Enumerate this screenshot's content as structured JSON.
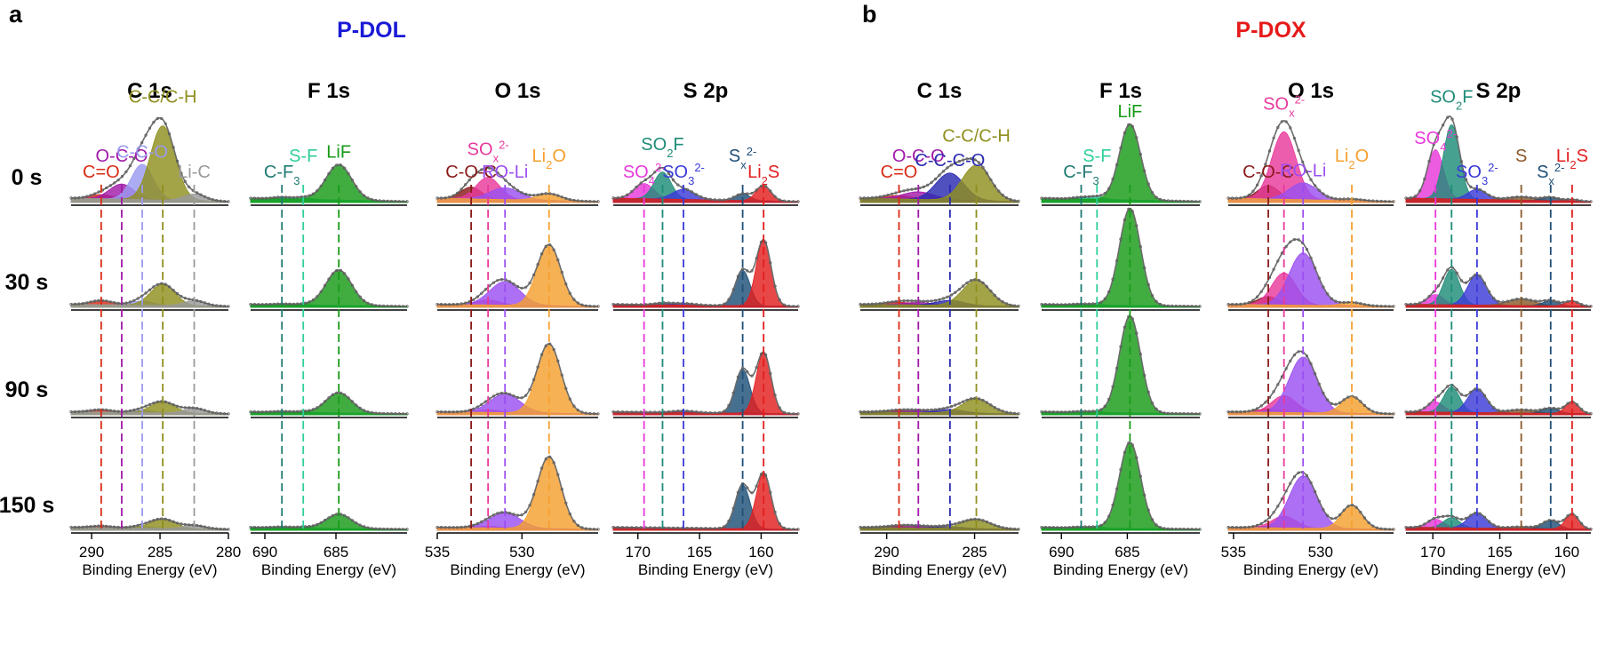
{
  "chart_data": {
    "type": "area",
    "time_labels": [
      "0 s",
      "30 s",
      "90 s",
      "150 s"
    ],
    "xlabel": "Binding Energy (eV)",
    "groups": [
      {
        "letter": "a",
        "title": "P-DOL",
        "title_color": "#1a1ad6",
        "panels": [
          {
            "region": "C 1s",
            "xlim": [
              291.5,
              280
            ],
            "ticks": [
              290,
              285,
              280
            ],
            "components": [
              {
                "label": "C=O",
                "color": "#d92b16",
                "center": 289.3,
                "width": 0.8,
                "heights": [
                  0.05,
                  0.05,
                  0.03,
                  0.02
                ],
                "label_html": "C=O"
              },
              {
                "label": "O-C-O",
                "color": "#a11aa8",
                "center": 287.8,
                "width": 0.9,
                "heights": [
                  0.18,
                  0.0,
                  0.0,
                  0.0
                ],
                "label_html": "O-C-O"
              },
              {
                "label": "C-C-O",
                "color": "#9a9af0",
                "center": 286.3,
                "width": 0.8,
                "heights": [
                  0.42,
                  0.05,
                  0.03,
                  0.02
                ],
                "label_html": "C-C-O"
              },
              {
                "label": "C-C/C-H",
                "color": "#8f8f1e",
                "center": 284.8,
                "width": 0.9,
                "heights": [
                  0.88,
                  0.25,
                  0.13,
                  0.11
                ],
                "label_html": "C-C/C-H"
              },
              {
                "label": "Li-C",
                "color": "#9a9a9a",
                "center": 282.5,
                "width": 0.8,
                "heights": [
                  0.08,
                  0.06,
                  0.06,
                  0.04
                ],
                "label_html": "Li-C"
              }
            ]
          },
          {
            "region": "F 1s",
            "xlim": [
              691,
              680
            ],
            "ticks": [
              690,
              685
            ],
            "components": [
              {
                "label": "C-F3",
                "color": "#1f7a72",
                "center": 688.8,
                "width": 0.6,
                "heights": [
                  0.02,
                  0.01,
                  0.01,
                  0.01
                ],
                "label_html": "C-F<tspan baseline-shift='sub' font-size='13'>3</tspan>"
              },
              {
                "label": "S-F",
                "color": "#2fcf9b",
                "center": 687.3,
                "width": 0.6,
                "heights": [
                  0.02,
                  0.01,
                  0.01,
                  0.01
                ],
                "label_html": "S-F"
              },
              {
                "label": "LiF",
                "color": "#179b17",
                "center": 684.8,
                "width": 0.9,
                "heights": [
                  0.42,
                  0.42,
                  0.24,
                  0.17
                ],
                "label_html": "LiF"
              }
            ]
          },
          {
            "region": "O 1s",
            "xlim": [
              535,
              525.5
            ],
            "ticks": [
              535,
              530
            ],
            "components": [
              {
                "label": "C-O-C",
                "color": "#8a1a1a",
                "center": 533.0,
                "width": 0.6,
                "heights": [
                  0.14,
                  0.0,
                  0.0,
                  0.0
                ],
                "label_html": "C-O-C"
              },
              {
                "label": "SOx2-",
                "color": "#e8399b",
                "center": 532.0,
                "width": 0.7,
                "heights": [
                  0.26,
                  0.06,
                  0.03,
                  0.02
                ],
                "label_html": "SO<tspan baseline-shift='sub' font-size='13'>x</tspan><tspan baseline-shift='super' font-size='13'>2-</tspan>"
              },
              {
                "label": "RO-Li",
                "color": "#9b4ff0",
                "center": 531.0,
                "width": 0.9,
                "heights": [
                  0.14,
                  0.28,
                  0.22,
                  0.18
                ],
                "label_html": "RO-Li"
              },
              {
                "label": "Li2O",
                "color": "#f5a030",
                "center": 528.4,
                "width": 0.7,
                "heights": [
                  0.08,
                  0.72,
                  0.82,
                  0.85
                ],
                "label_html": "Li<tspan baseline-shift='sub' font-size='13'>2</tspan>O"
              }
            ]
          },
          {
            "region": "S 2p",
            "xlim": [
              172,
              157
            ],
            "ticks": [
              170,
              165,
              160
            ],
            "components": [
              {
                "label": "SO42-",
                "color": "#e838d9",
                "center": 169.5,
                "width": 0.8,
                "heights": [
                  0.18,
                  0.0,
                  0.0,
                  0.0
                ],
                "label_html": "SO<tspan baseline-shift='sub' font-size='13'>4</tspan><tspan baseline-shift='super' font-size='13'>2-</tspan>"
              },
              {
                "label": "SO2F",
                "color": "#1e8c78",
                "center": 168.0,
                "width": 0.7,
                "heights": [
                  0.32,
                  0.02,
                  0.0,
                  0.0
                ],
                "label_html": "SO<tspan baseline-shift='sub' font-size='13'>2</tspan>F"
              },
              {
                "label": "SO32-",
                "color": "#3a3ad8",
                "center": 166.3,
                "width": 0.9,
                "heights": [
                  0.12,
                  0.02,
                  0.02,
                  0.0
                ],
                "label_html": "SO<tspan baseline-shift='sub' font-size='13'>3</tspan><tspan baseline-shift='super' font-size='13'>2-</tspan>"
              },
              {
                "label": "Sx2-",
                "color": "#1f4f78",
                "center": 161.5,
                "width": 0.6,
                "heights": [
                  0.08,
                  0.42,
                  0.52,
                  0.52
                ],
                "label_html": "S<tspan baseline-shift='sub' font-size='13'>x</tspan><tspan baseline-shift='super' font-size='13'>2-</tspan>"
              },
              {
                "label": "Li2S",
                "color": "#e31e1e",
                "center": 159.8,
                "width": 0.6,
                "heights": [
                  0.18,
                  0.78,
                  0.72,
                  0.66
                ],
                "label_html": "Li<tspan baseline-shift='sub' font-size='13'>2</tspan>S"
              }
            ]
          }
        ]
      },
      {
        "letter": "b",
        "title": "P-DOX",
        "title_color": "#e61a1a",
        "panels": [
          {
            "region": "C 1s",
            "xlim": [
              291.5,
              282.5
            ],
            "ticks": [
              290,
              285
            ],
            "components": [
              {
                "label": "C=O",
                "color": "#d92b16",
                "center": 289.3,
                "width": 0.8,
                "heights": [
                  0.04,
                  0.03,
                  0.02,
                  0.02
                ],
                "label_html": "C=O"
              },
              {
                "label": "O-C-O",
                "color": "#a11aa8",
                "center": 288.2,
                "width": 0.9,
                "heights": [
                  0.09,
                  0.03,
                  0.02,
                  0.02
                ],
                "label_html": "O-C-O"
              },
              {
                "label": "C-C-C-O",
                "color": "#2a2ab0",
                "center": 286.4,
                "width": 0.8,
                "heights": [
                  0.32,
                  0.06,
                  0.04,
                  0.02
                ],
                "label_html": "C-C-C-O"
              },
              {
                "label": "C-C/C-H",
                "color": "#8f8f1e",
                "center": 284.9,
                "width": 0.8,
                "heights": [
                  0.42,
                  0.3,
                  0.17,
                  0.11
                ],
                "label_html": "C-C/C-H"
              }
            ]
          },
          {
            "region": "F 1s",
            "xlim": [
              691.5,
              679.5
            ],
            "ticks": [
              690,
              685
            ],
            "components": [
              {
                "label": "C-F3",
                "color": "#1f7a72",
                "center": 688.5,
                "width": 0.6,
                "heights": [
                  0.02,
                  0.01,
                  0.01,
                  0.01
                ],
                "label_html": "C-F<tspan baseline-shift='sub' font-size='13'>3</tspan>"
              },
              {
                "label": "S-F",
                "color": "#2fcf9b",
                "center": 687.3,
                "width": 0.6,
                "heights": [
                  0.03,
                  0.01,
                  0.01,
                  0.01
                ],
                "label_html": "S-F"
              },
              {
                "label": "LiF",
                "color": "#179b17",
                "center": 684.8,
                "width": 0.8,
                "heights": [
                  0.9,
                  1.15,
                  1.15,
                  1.02
                ],
                "label_html": "LiF"
              }
            ]
          },
          {
            "region": "O 1s",
            "xlim": [
              535.3,
              525.8
            ],
            "ticks": [
              535,
              530
            ],
            "components": [
              {
                "label": "C-O-C",
                "color": "#8a1a1a",
                "center": 533.0,
                "width": 0.6,
                "heights": [
                  0.16,
                  0.1,
                  0.04,
                  0.02
                ],
                "label_html": "C-O-C"
              },
              {
                "label": "SOx2-",
                "color": "#e8399b",
                "center": 532.1,
                "width": 0.7,
                "heights": [
                  0.8,
                  0.38,
                  0.2,
                  0.14
                ],
                "label_html": "SO<tspan baseline-shift='sub' font-size='13'>x</tspan><tspan baseline-shift='super' font-size='13'>2-</tspan>"
              },
              {
                "label": "RO-Li",
                "color": "#9b4ff0",
                "center": 531.0,
                "width": 0.8,
                "heights": [
                  0.2,
                  0.62,
                  0.66,
                  0.62
                ],
                "label_html": "RO-Li"
              },
              {
                "label": "Li2O",
                "color": "#f5a030",
                "center": 528.2,
                "width": 0.6,
                "heights": [
                  0.02,
                  0.04,
                  0.2,
                  0.28
                ],
                "label_html": "Li<tspan baseline-shift='sub' font-size='13'>2</tspan>O"
              }
            ]
          },
          {
            "region": "S 2p",
            "xlim": [
              172,
              158.2
            ],
            "ticks": [
              170,
              165,
              160
            ],
            "components": [
              {
                "label": "SO42-",
                "color": "#e838d9",
                "center": 169.8,
                "width": 0.6,
                "heights": [
                  0.58,
                  0.12,
                  0.12,
                  0.1
                ],
                "label_html": "SO<tspan baseline-shift='sub' font-size='13'>4</tspan><tspan baseline-shift='super' font-size='13'>2-</tspan>"
              },
              {
                "label": "SO2F",
                "color": "#1e8c78",
                "center": 168.6,
                "width": 0.6,
                "heights": [
                  0.88,
                  0.42,
                  0.3,
                  0.12
                ],
                "label_html": "SO<tspan baseline-shift='sub' font-size='13'>2</tspan>F"
              },
              {
                "label": "SO32-",
                "color": "#3a3ad8",
                "center": 166.7,
                "width": 0.7,
                "heights": [
                  0.12,
                  0.36,
                  0.28,
                  0.18
                ],
                "label_html": "SO<tspan baseline-shift='sub' font-size='13'>3</tspan><tspan baseline-shift='super' font-size='13'>2-</tspan>"
              },
              {
                "label": "S",
                "color": "#8a5a2a",
                "center": 163.4,
                "width": 1.0,
                "heights": [
                  0.04,
                  0.08,
                  0.04,
                  0.02
                ],
                "label_html": "S"
              },
              {
                "label": "Sx2-",
                "color": "#1f4f78",
                "center": 161.2,
                "width": 0.6,
                "heights": [
                  0.04,
                  0.06,
                  0.06,
                  0.1
                ],
                "label_html": "S<tspan baseline-shift='sub' font-size='13'>x</tspan><tspan baseline-shift='super' font-size='13'>2-</tspan>"
              },
              {
                "label": "Li2S",
                "color": "#e31e1e",
                "center": 159.6,
                "width": 0.5,
                "heights": [
                  0.02,
                  0.06,
                  0.14,
                  0.18
                ],
                "label_html": "Li<tspan baseline-shift='sub' font-size='13'>2</tspan>S"
              }
            ]
          }
        ]
      }
    ]
  }
}
